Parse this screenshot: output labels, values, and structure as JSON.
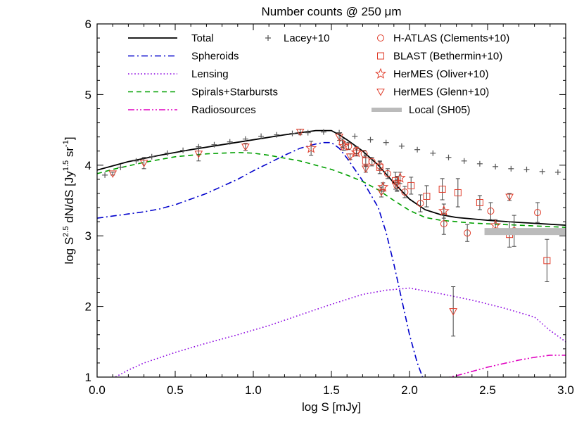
{
  "chart_data": {
    "type": "line",
    "title": "Number counts @ 250 μm",
    "xlabel": "log S [mJy]",
    "ylabel": "log S^{2.5} dN/dS [Jy^{1.5} sr^{-1}]",
    "xlim": [
      0.0,
      3.0
    ],
    "ylim": [
      1,
      6
    ],
    "xticks": [
      "0.0",
      "0.5",
      "1.0",
      "1.5",
      "2.0",
      "2.5",
      "3.0"
    ],
    "yticks": [
      "1",
      "2",
      "3",
      "4",
      "5",
      "6"
    ],
    "legend": [
      {
        "name": "Total",
        "style": "solid",
        "color": "#000000"
      },
      {
        "name": "Spheroids",
        "style": "dashdot",
        "color": "#0000cc"
      },
      {
        "name": "Lensing",
        "style": "dotted",
        "color": "#8a00e0"
      },
      {
        "name": "Spirals+Starbursts",
        "style": "dashed",
        "color": "#00a000"
      },
      {
        "name": "Radiosources",
        "style": "dashdotdot",
        "color": "#e000c0"
      },
      {
        "name": "Lacey+10",
        "marker": "plus",
        "color": "#555555"
      },
      {
        "name": "H-ATLAS (Clements+10)",
        "marker": "circle",
        "color": "#e03c2a"
      },
      {
        "name": "BLAST (Bethermin+10)",
        "marker": "square",
        "color": "#e03c2a"
      },
      {
        "name": "HerMES (Oliver+10)",
        "marker": "star",
        "color": "#e03c2a"
      },
      {
        "name": "HerMES (Glenn+10)",
        "marker": "triangle-down",
        "color": "#e03c2a"
      },
      {
        "name": "Local (SH05)",
        "marker": "band",
        "color": "#bbbbbb"
      }
    ],
    "series": [
      {
        "name": "Total",
        "style": "solid",
        "color": "#000000",
        "x": [
          0.0,
          0.2,
          0.4,
          0.6,
          0.8,
          1.0,
          1.2,
          1.4,
          1.5,
          1.55,
          1.6,
          1.7,
          1.8,
          1.9,
          2.0,
          2.1,
          2.2,
          2.3,
          2.5,
          2.7,
          3.0
        ],
        "y": [
          3.93,
          4.05,
          4.14,
          4.22,
          4.29,
          4.36,
          4.43,
          4.49,
          4.49,
          4.43,
          4.36,
          4.2,
          4.0,
          3.75,
          3.52,
          3.37,
          3.3,
          3.26,
          3.22,
          3.19,
          3.15
        ]
      },
      {
        "name": "Spheroids",
        "style": "dashdot",
        "color": "#0000cc",
        "x": [
          0.0,
          0.1,
          0.2,
          0.3,
          0.4,
          0.5,
          0.6,
          0.7,
          0.8,
          0.9,
          1.0,
          1.1,
          1.2,
          1.3,
          1.4,
          1.45,
          1.5,
          1.55,
          1.6,
          1.7,
          1.8,
          1.85,
          1.9,
          1.95,
          2.0,
          2.05,
          2.1
        ],
        "y": [
          3.25,
          3.28,
          3.31,
          3.34,
          3.38,
          3.44,
          3.52,
          3.6,
          3.7,
          3.8,
          3.92,
          4.03,
          4.14,
          4.24,
          4.3,
          4.32,
          4.32,
          4.24,
          4.1,
          3.78,
          3.4,
          3.05,
          2.6,
          2.1,
          1.6,
          1.2,
          0.9
        ]
      },
      {
        "name": "Lensing",
        "style": "dotted",
        "color": "#8a00e0",
        "x": [
          0.1,
          0.2,
          0.3,
          0.5,
          0.7,
          0.9,
          1.1,
          1.3,
          1.5,
          1.7,
          1.85,
          2.0,
          2.2,
          2.4,
          2.6,
          2.8,
          2.9,
          3.0
        ],
        "y": [
          0.98,
          1.1,
          1.2,
          1.35,
          1.48,
          1.6,
          1.73,
          1.88,
          2.03,
          2.17,
          2.23,
          2.26,
          2.18,
          2.09,
          1.98,
          1.85,
          1.66,
          1.5
        ]
      },
      {
        "name": "Spirals+Starbursts",
        "style": "dashed",
        "color": "#00a000",
        "x": [
          0.0,
          0.1,
          0.2,
          0.3,
          0.4,
          0.5,
          0.6,
          0.7,
          0.8,
          0.9,
          1.0,
          1.1,
          1.2,
          1.3,
          1.4,
          1.5,
          1.6,
          1.7,
          1.8,
          1.9,
          2.0,
          2.1,
          2.2,
          2.4,
          2.6,
          2.8,
          3.0
        ],
        "y": [
          3.88,
          3.94,
          3.99,
          4.04,
          4.08,
          4.12,
          4.14,
          4.16,
          4.17,
          4.18,
          4.17,
          4.14,
          4.1,
          4.06,
          4.0,
          3.94,
          3.86,
          3.77,
          3.65,
          3.5,
          3.36,
          3.26,
          3.22,
          3.18,
          3.16,
          3.14,
          3.12
        ]
      },
      {
        "name": "Radiosources",
        "style": "dashdotdot",
        "color": "#e000c0",
        "x": [
          2.2,
          2.3,
          2.4,
          2.5,
          2.6,
          2.7,
          2.8,
          2.9,
          3.0
        ],
        "y": [
          0.97,
          1.02,
          1.08,
          1.14,
          1.19,
          1.24,
          1.28,
          1.31,
          1.31
        ]
      },
      {
        "name": "Lacey+10",
        "marker": "plus",
        "color": "#555555",
        "x": [
          0.05,
          0.15,
          0.25,
          0.35,
          0.45,
          0.55,
          0.65,
          0.75,
          0.85,
          0.95,
          1.05,
          1.15,
          1.25,
          1.35,
          1.45,
          1.55,
          1.65,
          1.75,
          1.85,
          1.95,
          2.05,
          2.15,
          2.25,
          2.35,
          2.45,
          2.55,
          2.65,
          2.75,
          2.85,
          2.95
        ],
        "y": [
          3.86,
          3.97,
          4.06,
          4.12,
          4.17,
          4.21,
          4.26,
          4.29,
          4.33,
          4.37,
          4.41,
          4.43,
          4.45,
          4.46,
          4.47,
          4.46,
          4.41,
          4.36,
          4.32,
          4.27,
          4.22,
          4.17,
          4.11,
          4.06,
          4.02,
          3.98,
          3.95,
          3.94,
          3.91,
          3.9
        ]
      },
      {
        "name": "H-ATLAS (Clements+10)",
        "marker": "circle",
        "color": "#e03c2a",
        "x": [
          1.57,
          1.61,
          1.66,
          1.71,
          1.76,
          1.81,
          1.86,
          1.92,
          1.97,
          2.07,
          2.22,
          2.37,
          2.52,
          2.67,
          2.82
        ],
        "y": [
          4.31,
          4.27,
          4.21,
          4.16,
          4.05,
          3.99,
          3.88,
          3.71,
          3.62,
          3.46,
          3.17,
          3.04,
          3.35,
          3.07,
          3.33
        ],
        "err": [
          0.06,
          0.05,
          0.05,
          0.05,
          0.06,
          0.06,
          0.07,
          0.08,
          0.08,
          0.12,
          0.15,
          0.12,
          0.12,
          0.22,
          0.14
        ]
      },
      {
        "name": "BLAST (Bethermin+10)",
        "marker": "square",
        "color": "#e03c2a",
        "x": [
          1.72,
          1.81,
          1.91,
          2.01,
          2.11,
          2.21,
          2.31,
          2.45,
          2.64,
          2.88
        ],
        "y": [
          4.06,
          3.97,
          3.78,
          3.71,
          3.56,
          3.66,
          3.61,
          3.47,
          3.02,
          2.65
        ],
        "err": [
          0.08,
          0.09,
          0.12,
          0.12,
          0.15,
          0.15,
          0.2,
          0.1,
          0.18,
          0.3
        ]
      },
      {
        "name": "HerMES (Oliver+10)",
        "marker": "star",
        "color": "#e03c2a",
        "x": [
          1.37,
          1.58,
          1.66,
          1.83,
          1.94,
          2.22,
          2.55
        ],
        "y": [
          4.24,
          4.27,
          4.18,
          3.69,
          3.82,
          3.35,
          3.15
        ],
        "err": [
          0.1,
          0.06,
          0.05,
          0.06,
          0.08,
          0.1,
          0.08
        ]
      },
      {
        "name": "HerMES (Glenn+10)",
        "marker": "triangle-down",
        "color": "#e03c2a",
        "x": [
          0.1,
          0.3,
          0.65,
          0.95,
          1.3,
          1.55,
          1.62,
          1.72,
          1.82,
          1.92,
          2.28,
          2.64
        ],
        "y": [
          3.88,
          4.03,
          4.16,
          4.26,
          4.47,
          4.4,
          4.12,
          3.95,
          3.62,
          3.74,
          1.93,
          3.55
        ],
        "err": [
          0.02,
          0.08,
          0.1,
          0.05,
          0.04,
          0.05,
          0.04,
          0.05,
          0.07,
          0.1,
          0.35,
          0.05
        ]
      },
      {
        "name": "Local (SH05)",
        "marker": "band",
        "color": "#bbbbbb",
        "x": [
          2.48,
          3.0
        ],
        "y": [
          3.06,
          3.06
        ]
      }
    ]
  }
}
